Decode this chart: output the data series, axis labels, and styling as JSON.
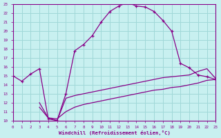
{
  "xlabel": "Windchill (Refroidissement éolien,°C)",
  "bg_color": "#c8f0f0",
  "grid_color": "#a0d8d8",
  "line_color": "#880088",
  "xlim": [
    0,
    23
  ],
  "ylim": [
    10,
    23
  ],
  "xticks": [
    0,
    1,
    2,
    3,
    4,
    5,
    6,
    7,
    8,
    9,
    10,
    11,
    12,
    13,
    14,
    15,
    16,
    17,
    18,
    19,
    20,
    21,
    22,
    23
  ],
  "yticks": [
    10,
    11,
    12,
    13,
    14,
    15,
    16,
    17,
    18,
    19,
    20,
    21,
    22,
    23
  ],
  "series1_x": [
    0,
    1,
    2,
    3,
    4,
    5,
    6,
    7,
    8,
    9,
    10,
    11,
    12,
    13,
    14,
    15,
    16,
    17,
    18,
    19,
    20,
    21,
    22,
    23
  ],
  "series1_y": [
    15.0,
    14.4,
    15.2,
    15.8,
    10.2,
    10.0,
    13.0,
    17.8,
    18.5,
    19.5,
    21.0,
    22.2,
    22.8,
    23.2,
    22.8,
    22.7,
    22.2,
    21.2,
    20.0,
    16.4,
    15.9,
    15.1,
    14.9,
    14.6
  ],
  "series2_x": [
    3,
    4,
    5,
    6,
    7,
    8,
    9,
    10,
    11,
    12,
    13,
    14,
    15,
    16,
    17,
    18,
    19,
    20,
    21,
    22,
    23
  ],
  "series2_y": [
    12.0,
    10.3,
    10.0,
    12.5,
    12.8,
    13.0,
    13.2,
    13.4,
    13.6,
    13.8,
    14.0,
    14.2,
    14.4,
    14.6,
    14.8,
    14.9,
    15.0,
    15.1,
    15.5,
    15.8,
    14.7
  ],
  "series3_x": [
    3,
    4,
    5,
    6,
    7,
    8,
    9,
    10,
    11,
    12,
    13,
    14,
    15,
    16,
    17,
    18,
    19,
    20,
    21,
    22,
    23
  ],
  "series3_y": [
    11.5,
    10.3,
    10.2,
    11.0,
    11.5,
    11.8,
    12.0,
    12.2,
    12.4,
    12.6,
    12.8,
    13.0,
    13.2,
    13.4,
    13.5,
    13.7,
    13.8,
    14.0,
    14.2,
    14.5,
    14.6
  ]
}
